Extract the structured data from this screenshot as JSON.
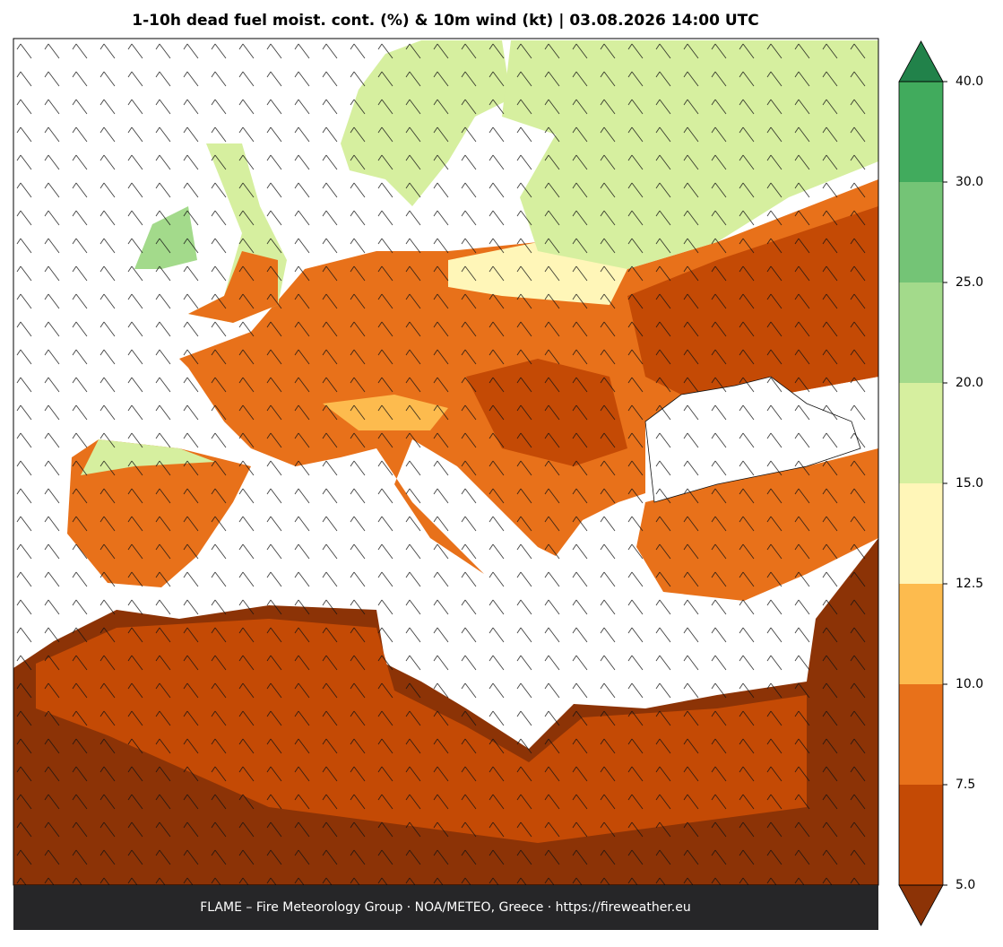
{
  "title": "1-10h dead fuel moist. cont. (%) & 10m wind (kt)  |  03.08.2026 14:00 UTC",
  "footer": "FLAME – Fire Meteorology Group · NOA/METEO, Greece · https://fireweather.eu",
  "colorbar": {
    "levels": [
      {
        "value": 5,
        "label": "5.0"
      },
      {
        "value": 7.5,
        "label": "7.5"
      },
      {
        "value": 10,
        "label": "10.0"
      },
      {
        "value": 12.5,
        "label": "12.5"
      },
      {
        "value": 15,
        "label": "15.0"
      },
      {
        "value": 20,
        "label": "20.0"
      },
      {
        "value": 25,
        "label": "25.0"
      },
      {
        "value": 30,
        "label": "30.0"
      },
      {
        "value": 40,
        "label": "40.0"
      }
    ],
    "colors": [
      "#c44a05",
      "#e8711a",
      "#fdbb4e",
      "#fff6b8",
      "#d6ef9f",
      "#a3da8b",
      "#74c476",
      "#41ab5d"
    ],
    "under_color": "#8c3306",
    "over_color": "#21824a"
  }
}
